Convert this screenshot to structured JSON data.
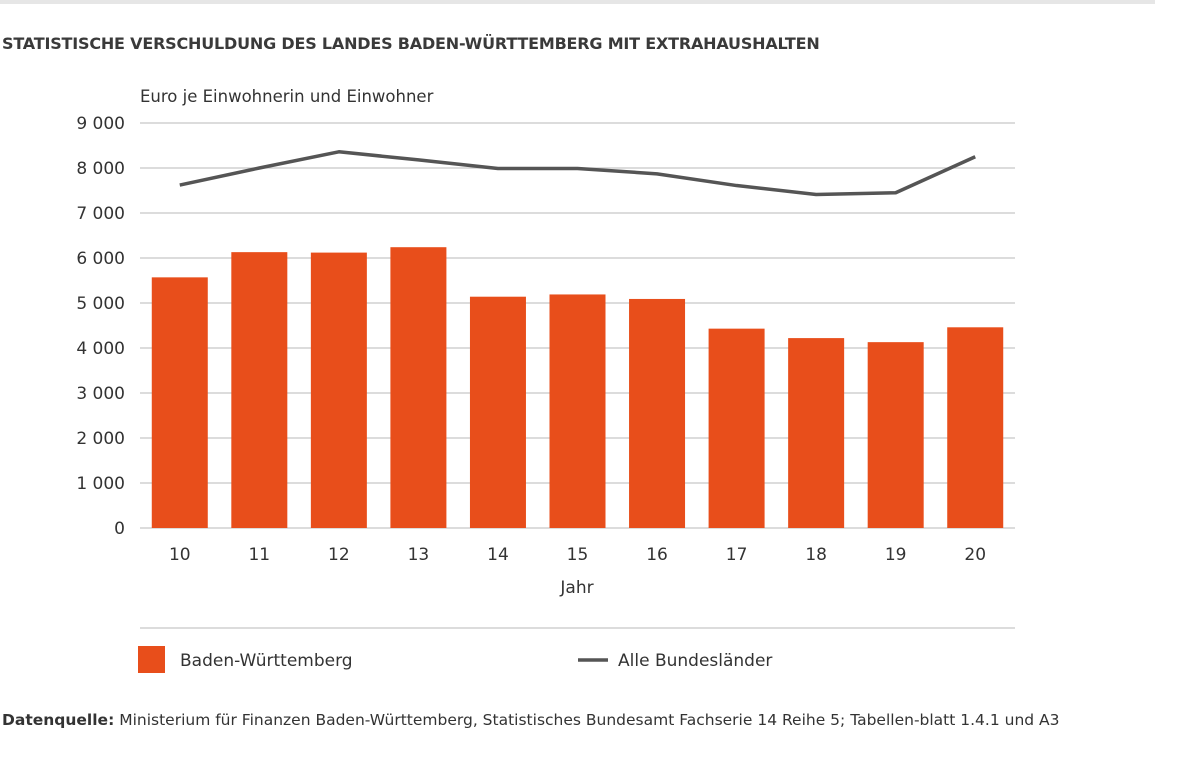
{
  "title": "STATISTISCHE VERSCHULDUNG DES LANDES BADEN-WÜRTTEMBERG MIT EXTRAHAUSHALTEN",
  "source": {
    "label": "Datenquelle:",
    "text": " Ministerium für Finanzen Baden-Württemberg, Statistisches Bundesamt Fachserie 14 Reihe 5; Tabellen-blatt 1.4.1 und A3"
  },
  "chart_data": {
    "type": "bar",
    "ylabel": "Euro je Einwohnerin und Einwohner",
    "xlabel": "Jahr",
    "ylim": [
      0,
      9000
    ],
    "yticks": [
      0,
      1000,
      2000,
      3000,
      4000,
      5000,
      6000,
      7000,
      8000,
      9000
    ],
    "ytick_labels": [
      "0",
      "1 000",
      "2 000",
      "3 000",
      "4 000",
      "5 000",
      "6 000",
      "7 000",
      "8 000",
      "9 000"
    ],
    "grid": true,
    "legend_placement": "bottom",
    "categories": [
      "10",
      "11",
      "12",
      "13",
      "14",
      "15",
      "16",
      "17",
      "18",
      "19",
      "20"
    ],
    "series": [
      {
        "name": "Baden-Württemberg",
        "type": "bar",
        "color": "#e84e1b",
        "values": [
          5570,
          6130,
          6120,
          6240,
          5140,
          5190,
          5090,
          4430,
          4220,
          4130,
          4460
        ]
      },
      {
        "name": "Alle Bundesländer",
        "type": "line",
        "color": "#555555",
        "values": [
          7620,
          8000,
          8360,
          8180,
          7990,
          7990,
          7870,
          7610,
          7410,
          7450,
          8250
        ]
      }
    ]
  }
}
